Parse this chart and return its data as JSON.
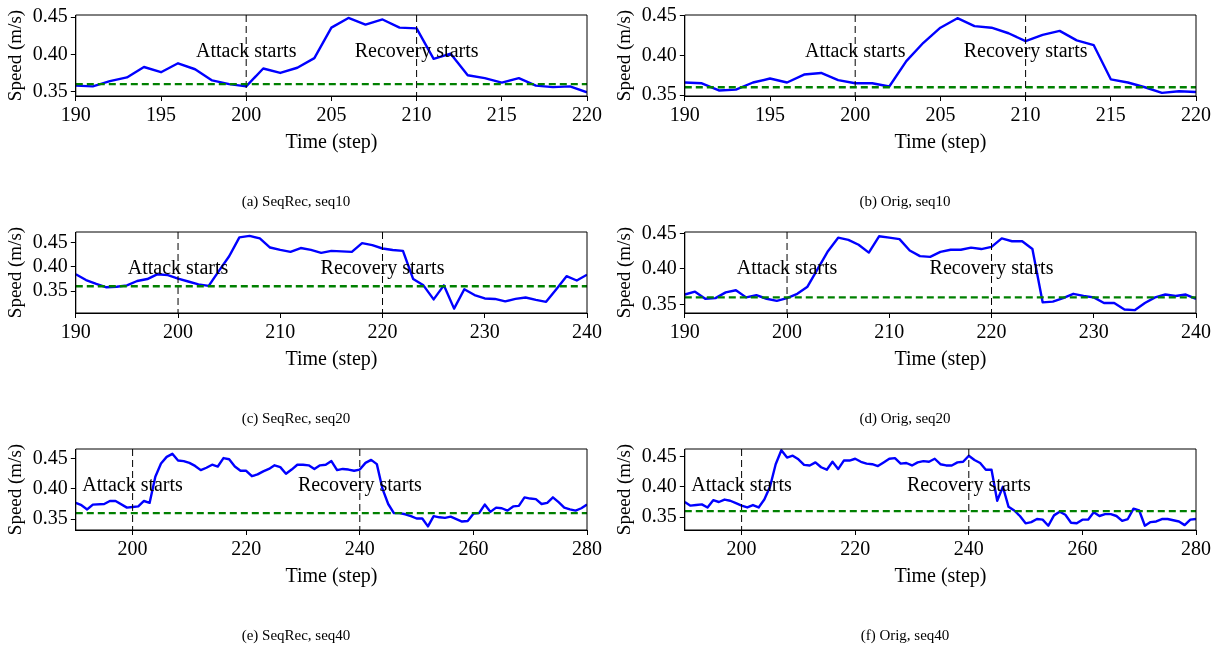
{
  "chart_data": [
    {
      "type": "line",
      "title": "(a) SeqRec, seq10",
      "xlabel": "Time (step)",
      "ylabel": "Speed (m/s)",
      "xlim": [
        190,
        220
      ],
      "xticks": [
        190,
        195,
        200,
        205,
        210,
        215,
        220
      ],
      "ylim": [
        0.344,
        0.453
      ],
      "yticks": [
        {
          "value": 0.35,
          "label": "0.35"
        },
        {
          "value": 0.4,
          "label": "0.40"
        },
        {
          "value": 0.45,
          "label": "0.45"
        }
      ],
      "grid": false,
      "legend": false,
      "marker": "none",
      "line_style": "solid",
      "x": [
        190,
        191,
        192,
        193,
        194,
        195,
        196,
        197,
        198,
        199,
        200,
        201,
        202,
        203,
        204,
        205,
        206,
        207,
        208,
        209,
        210,
        211,
        212,
        213,
        214,
        215,
        216,
        217,
        218,
        219,
        220
      ],
      "series": [
        {
          "color": "#0000ff",
          "values": [
            0.358,
            0.357,
            0.364,
            0.369,
            0.383,
            0.376,
            0.388,
            0.38,
            0.365,
            0.36,
            0.357,
            0.381,
            0.375,
            0.382,
            0.395,
            0.436,
            0.449,
            0.44,
            0.447,
            0.436,
            0.435,
            0.394,
            0.401,
            0.372,
            0.368,
            0.362,
            0.368,
            0.358,
            0.356,
            0.357,
            0.349
          ]
        }
      ],
      "ref_lines": [
        {
          "axis": "x",
          "value": 200,
          "label": "Attack starts",
          "color": "#000000",
          "line_style": "dashed"
        },
        {
          "axis": "x",
          "value": 210,
          "label": "Recovery starts",
          "color": "#000000",
          "line_style": "dashed"
        },
        {
          "axis": "y",
          "value": 0.36,
          "color": "#008000",
          "line_style": "dashed"
        }
      ]
    },
    {
      "type": "line",
      "title": "(b) Orig, seq10",
      "xlabel": "Time (step)",
      "ylabel": "Speed (m/s)",
      "xlim": [
        190,
        220
      ],
      "xticks": [
        190,
        195,
        200,
        205,
        210,
        215,
        220
      ],
      "ylim": [
        0.349,
        0.451
      ],
      "yticks": [
        {
          "value": 0.35,
          "label": "0.35"
        },
        {
          "value": 0.4,
          "label": "0.40"
        },
        {
          "value": 0.45,
          "label": "0.45"
        }
      ],
      "grid": false,
      "legend": false,
      "marker": "none",
      "line_style": "solid",
      "x": [
        190,
        191,
        192,
        193,
        194,
        195,
        196,
        197,
        198,
        199,
        200,
        201,
        202,
        203,
        204,
        205,
        206,
        207,
        208,
        209,
        210,
        211,
        212,
        213,
        214,
        215,
        216,
        217,
        218,
        219,
        220
      ],
      "series": [
        {
          "color": "#0000ff",
          "values": [
            0.366,
            0.365,
            0.356,
            0.357,
            0.366,
            0.371,
            0.366,
            0.376,
            0.378,
            0.369,
            0.365,
            0.365,
            0.361,
            0.393,
            0.416,
            0.435,
            0.447,
            0.437,
            0.435,
            0.428,
            0.418,
            0.426,
            0.431,
            0.419,
            0.413,
            0.37,
            0.366,
            0.36,
            0.353,
            0.355,
            0.354
          ]
        }
      ],
      "ref_lines": [
        {
          "axis": "x",
          "value": 200,
          "label": "Attack starts",
          "color": "#000000",
          "line_style": "dashed"
        },
        {
          "axis": "x",
          "value": 210,
          "label": "Recovery starts",
          "color": "#000000",
          "line_style": "dashed"
        },
        {
          "axis": "y",
          "value": 0.36,
          "color": "#008000",
          "line_style": "dashed"
        }
      ]
    },
    {
      "type": "line",
      "title": "(c) SeqRec, seq20",
      "xlabel": "Time (step)",
      "ylabel": "Speed (m/s)",
      "xlim": [
        190,
        240
      ],
      "xticks": [
        190,
        200,
        210,
        220,
        230,
        240
      ],
      "ylim": [
        0.305,
        0.472
      ],
      "yticks": [
        {
          "value": 0.35,
          "label": "0.35"
        },
        {
          "value": 0.4,
          "label": "0.40"
        },
        {
          "value": 0.45,
          "label": "0.45"
        }
      ],
      "grid": false,
      "legend": false,
      "marker": "none",
      "line_style": "solid",
      "x": [
        190,
        191,
        192,
        193,
        194,
        195,
        196,
        197,
        198,
        199,
        200,
        201,
        202,
        203,
        204,
        205,
        206,
        207,
        208,
        209,
        210,
        211,
        212,
        213,
        214,
        215,
        216,
        217,
        218,
        219,
        220,
        221,
        222,
        223,
        224,
        225,
        226,
        227,
        228,
        229,
        230,
        231,
        232,
        233,
        234,
        235,
        236,
        237,
        238,
        239,
        240
      ],
      "series": [
        {
          "color": "#0000ff",
          "values": [
            0.385,
            0.373,
            0.365,
            0.358,
            0.359,
            0.362,
            0.371,
            0.375,
            0.385,
            0.383,
            0.376,
            0.37,
            0.364,
            0.361,
            0.392,
            0.422,
            0.461,
            0.464,
            0.459,
            0.44,
            0.435,
            0.431,
            0.439,
            0.435,
            0.429,
            0.433,
            0.432,
            0.431,
            0.449,
            0.445,
            0.438,
            0.435,
            0.433,
            0.375,
            0.362,
            0.333,
            0.362,
            0.314,
            0.354,
            0.342,
            0.335,
            0.334,
            0.329,
            0.334,
            0.337,
            0.332,
            0.328,
            0.354,
            0.381,
            0.372,
            0.384
          ]
        }
      ],
      "ref_lines": [
        {
          "axis": "x",
          "value": 200,
          "label": "Attack starts",
          "color": "#000000",
          "line_style": "dashed"
        },
        {
          "axis": "x",
          "value": 220,
          "label": "Recovery starts",
          "color": "#000000",
          "line_style": "dashed"
        },
        {
          "axis": "y",
          "value": 0.36,
          "color": "#008000",
          "line_style": "dashed"
        }
      ]
    },
    {
      "type": "line",
      "title": "(d) Orig, seq20",
      "xlabel": "Time (step)",
      "ylabel": "Speed (m/s)",
      "xlim": [
        190,
        240
      ],
      "xticks": [
        190,
        200,
        210,
        220,
        230,
        240
      ],
      "ylim": [
        0.338,
        0.452
      ],
      "yticks": [
        {
          "value": 0.35,
          "label": "0.35"
        },
        {
          "value": 0.4,
          "label": "0.40"
        },
        {
          "value": 0.45,
          "label": "0.45"
        }
      ],
      "grid": false,
      "legend": false,
      "marker": "none",
      "line_style": "solid",
      "x": [
        190,
        191,
        192,
        193,
        194,
        195,
        196,
        197,
        198,
        199,
        200,
        201,
        202,
        203,
        204,
        205,
        206,
        207,
        208,
        209,
        210,
        211,
        212,
        213,
        214,
        215,
        216,
        217,
        218,
        219,
        220,
        221,
        222,
        223,
        224,
        225,
        226,
        227,
        228,
        229,
        230,
        231,
        232,
        233,
        234,
        235,
        236,
        237,
        238,
        239,
        240
      ],
      "series": [
        {
          "color": "#0000ff",
          "values": [
            0.364,
            0.368,
            0.358,
            0.359,
            0.367,
            0.37,
            0.36,
            0.363,
            0.358,
            0.355,
            0.359,
            0.365,
            0.375,
            0.4,
            0.425,
            0.444,
            0.441,
            0.434,
            0.423,
            0.446,
            0.444,
            0.442,
            0.426,
            0.418,
            0.417,
            0.424,
            0.427,
            0.427,
            0.43,
            0.428,
            0.431,
            0.443,
            0.439,
            0.439,
            0.428,
            0.353,
            0.354,
            0.359,
            0.365,
            0.362,
            0.36,
            0.352,
            0.352,
            0.343,
            0.342,
            0.352,
            0.36,
            0.364,
            0.362,
            0.364,
            0.358
          ]
        }
      ],
      "ref_lines": [
        {
          "axis": "x",
          "value": 200,
          "label": "Attack starts",
          "color": "#000000",
          "line_style": "dashed"
        },
        {
          "axis": "x",
          "value": 220,
          "label": "Recovery starts",
          "color": "#000000",
          "line_style": "dashed"
        },
        {
          "axis": "y",
          "value": 0.36,
          "color": "#008000",
          "line_style": "dashed"
        }
      ]
    },
    {
      "type": "line",
      "title": "(e) SeqRec, seq40",
      "xlabel": "Time (step)",
      "ylabel": "Speed (m/s)",
      "xlim": [
        190,
        280
      ],
      "xticks": [
        200,
        220,
        240,
        260,
        280
      ],
      "ylim": [
        0.332,
        0.466
      ],
      "yticks": [
        {
          "value": 0.35,
          "label": "0.35"
        },
        {
          "value": 0.4,
          "label": "0.40"
        },
        {
          "value": 0.45,
          "label": "0.45"
        }
      ],
      "grid": false,
      "legend": false,
      "marker": "none",
      "line_style": "solid",
      "x": [
        190,
        191,
        192,
        193,
        195,
        196,
        197,
        199,
        200,
        201,
        202,
        203,
        204,
        205,
        206,
        207,
        208,
        209,
        210,
        211,
        212,
        213,
        214,
        215,
        216,
        217,
        218,
        219,
        220,
        221,
        222,
        223,
        224,
        225,
        226,
        227,
        228,
        229,
        230,
        231,
        232,
        233,
        234,
        235,
        236,
        237,
        238,
        239,
        240,
        241,
        242,
        243,
        244,
        245,
        246,
        247,
        248,
        249,
        250,
        251,
        252,
        253,
        254,
        255,
        256,
        257,
        258,
        259,
        260,
        261,
        262,
        263,
        264,
        265,
        266,
        267,
        268,
        269,
        270,
        271,
        272,
        273,
        274,
        275,
        276,
        277,
        278,
        279,
        280
      ],
      "series": [
        {
          "color": "#0000ff",
          "values": [
            0.377,
            0.373,
            0.366,
            0.374,
            0.375,
            0.38,
            0.38,
            0.369,
            0.37,
            0.371,
            0.38,
            0.377,
            0.42,
            0.442,
            0.453,
            0.458,
            0.447,
            0.446,
            0.443,
            0.438,
            0.431,
            0.435,
            0.44,
            0.437,
            0.451,
            0.449,
            0.437,
            0.43,
            0.43,
            0.421,
            0.424,
            0.429,
            0.433,
            0.439,
            0.436,
            0.425,
            0.432,
            0.44,
            0.44,
            0.439,
            0.433,
            0.439,
            0.44,
            0.446,
            0.431,
            0.433,
            0.432,
            0.43,
            0.432,
            0.443,
            0.448,
            0.441,
            0.4,
            0.375,
            0.36,
            0.36,
            0.358,
            0.355,
            0.351,
            0.351,
            0.338,
            0.355,
            0.353,
            0.352,
            0.354,
            0.35,
            0.346,
            0.347,
            0.359,
            0.36,
            0.374,
            0.362,
            0.369,
            0.368,
            0.364,
            0.371,
            0.372,
            0.386,
            0.384,
            0.383,
            0.375,
            0.377,
            0.386,
            0.378,
            0.369,
            0.366,
            0.364,
            0.368,
            0.374
          ]
        }
      ],
      "ref_lines": [
        {
          "axis": "x",
          "value": 200,
          "label": "Attack starts",
          "color": "#000000",
          "line_style": "dashed"
        },
        {
          "axis": "x",
          "value": 240,
          "label": "Recovery starts",
          "color": "#000000",
          "line_style": "dashed"
        },
        {
          "axis": "y",
          "value": 0.36,
          "color": "#008000",
          "line_style": "dashed"
        }
      ]
    },
    {
      "type": "line",
      "title": "(f) Orig, seq40",
      "xlabel": "Time (step)",
      "ylabel": "Speed (m/s)",
      "xlim": [
        190,
        280
      ],
      "xticks": [
        200,
        220,
        240,
        260,
        280
      ],
      "ylim": [
        0.329,
        0.462
      ],
      "yticks": [
        {
          "value": 0.35,
          "label": "0.35"
        },
        {
          "value": 0.4,
          "label": "0.40"
        },
        {
          "value": 0.45,
          "label": "0.45"
        }
      ],
      "grid": false,
      "legend": false,
      "marker": "none",
      "line_style": "solid",
      "x": [
        190,
        191,
        192,
        193,
        194,
        195,
        196,
        197,
        198,
        199,
        200,
        201,
        202,
        203,
        204,
        205,
        206,
        207,
        208,
        209,
        210,
        211,
        212,
        213,
        214,
        215,
        216,
        217,
        218,
        219,
        220,
        221,
        222,
        223,
        224,
        225,
        226,
        227,
        228,
        229,
        230,
        231,
        232,
        233,
        234,
        235,
        236,
        237,
        238,
        239,
        240,
        241,
        242,
        243,
        244,
        245,
        246,
        247,
        248,
        249,
        250,
        251,
        252,
        253,
        254,
        255,
        256,
        257,
        258,
        259,
        260,
        261,
        262,
        263,
        264,
        265,
        266,
        267,
        268,
        269,
        270,
        271,
        272,
        273,
        274,
        275,
        276,
        277,
        278,
        279,
        280
      ],
      "series": [
        {
          "color": "#0000ff",
          "values": [
            0.375,
            0.369,
            0.37,
            0.371,
            0.366,
            0.378,
            0.375,
            0.379,
            0.377,
            0.373,
            0.369,
            0.366,
            0.37,
            0.366,
            0.379,
            0.4,
            0.437,
            0.46,
            0.448,
            0.451,
            0.445,
            0.436,
            0.435,
            0.44,
            0.432,
            0.428,
            0.441,
            0.429,
            0.443,
            0.443,
            0.446,
            0.441,
            0.438,
            0.437,
            0.434,
            0.44,
            0.446,
            0.447,
            0.438,
            0.439,
            0.435,
            0.44,
            0.442,
            0.441,
            0.446,
            0.437,
            0.435,
            0.435,
            0.44,
            0.441,
            0.451,
            0.444,
            0.439,
            0.428,
            0.428,
            0.377,
            0.4,
            0.367,
            0.361,
            0.352,
            0.34,
            0.342,
            0.347,
            0.346,
            0.336,
            0.353,
            0.359,
            0.354,
            0.341,
            0.34,
            0.346,
            0.346,
            0.358,
            0.352,
            0.355,
            0.355,
            0.352,
            0.344,
            0.347,
            0.364,
            0.361,
            0.336,
            0.342,
            0.343,
            0.347,
            0.347,
            0.345,
            0.343,
            0.337,
            0.346,
            0.347
          ]
        }
      ],
      "ref_lines": [
        {
          "axis": "x",
          "value": 200,
          "label": "Attack starts",
          "color": "#000000",
          "line_style": "dashed"
        },
        {
          "axis": "x",
          "value": 240,
          "label": "Recovery starts",
          "color": "#000000",
          "line_style": "dashed"
        },
        {
          "axis": "y",
          "value": 0.36,
          "color": "#008000",
          "line_style": "dashed"
        }
      ]
    }
  ]
}
